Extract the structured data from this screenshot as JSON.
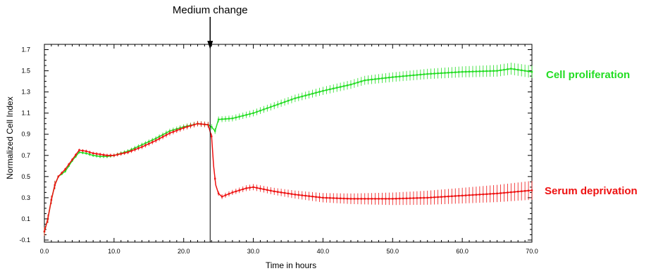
{
  "chart_data": {
    "type": "line",
    "title": "",
    "xlabel": "Time in hours",
    "ylabel": "Normalized Cell Index",
    "xlim": [
      0,
      70
    ],
    "ylim": [
      -0.12,
      1.75
    ],
    "x_ticks": [
      0,
      10,
      20,
      30,
      40,
      50,
      60,
      70
    ],
    "x_tick_labels": [
      "0.0",
      "10.0",
      "20.0",
      "30.0",
      "40.0",
      "50.0",
      "60.0",
      "70.0"
    ],
    "y_ticks": [
      -0.1,
      0.1,
      0.3,
      0.5,
      0.7,
      0.9,
      1.1,
      1.3,
      1.5,
      1.7
    ],
    "y_tick_labels": [
      "-0.1",
      "0.1",
      "0.3",
      "0.5",
      "0.7",
      "0.9",
      "1.1",
      "1.3",
      "1.5",
      "1.7"
    ],
    "grid": false,
    "annotations": [
      {
        "text": "Medium change",
        "x": 23.8,
        "type": "vertical-line-with-arrow"
      }
    ],
    "series": [
      {
        "name": "Cell proliferation",
        "color": "#22dd22",
        "points": [
          [
            0,
            -0.02
          ],
          [
            0.5,
            0.1
          ],
          [
            1,
            0.28
          ],
          [
            1.5,
            0.42
          ],
          [
            2,
            0.5
          ],
          [
            3,
            0.55
          ],
          [
            4,
            0.65
          ],
          [
            5,
            0.73
          ],
          [
            6,
            0.72
          ],
          [
            7,
            0.7
          ],
          [
            8,
            0.69
          ],
          [
            9,
            0.69
          ],
          [
            10,
            0.7
          ],
          [
            12,
            0.74
          ],
          [
            14,
            0.8
          ],
          [
            16,
            0.86
          ],
          [
            18,
            0.93
          ],
          [
            20,
            0.97
          ],
          [
            22,
            1.0
          ],
          [
            23.5,
            0.99
          ],
          [
            24,
            0.97
          ],
          [
            24.5,
            0.93
          ],
          [
            25,
            1.04
          ],
          [
            27,
            1.05
          ],
          [
            30,
            1.1
          ],
          [
            33,
            1.17
          ],
          [
            36,
            1.24
          ],
          [
            40,
            1.31
          ],
          [
            42,
            1.34
          ],
          [
            44,
            1.37
          ],
          [
            46,
            1.41
          ],
          [
            50,
            1.44
          ],
          [
            55,
            1.47
          ],
          [
            60,
            1.49
          ],
          [
            65,
            1.5
          ],
          [
            67,
            1.52
          ],
          [
            70,
            1.49
          ]
        ]
      },
      {
        "name": "Serum deprivation",
        "color": "#ee1111",
        "points": [
          [
            0,
            -0.02
          ],
          [
            0.5,
            0.1
          ],
          [
            1,
            0.28
          ],
          [
            1.5,
            0.42
          ],
          [
            2,
            0.5
          ],
          [
            3,
            0.57
          ],
          [
            4,
            0.66
          ],
          [
            5,
            0.75
          ],
          [
            6,
            0.74
          ],
          [
            7,
            0.72
          ],
          [
            8,
            0.71
          ],
          [
            9,
            0.7
          ],
          [
            10,
            0.7
          ],
          [
            12,
            0.73
          ],
          [
            14,
            0.78
          ],
          [
            16,
            0.84
          ],
          [
            18,
            0.91
          ],
          [
            20,
            0.96
          ],
          [
            22,
            1.0
          ],
          [
            23.5,
            0.99
          ],
          [
            24,
            0.88
          ],
          [
            24.3,
            0.6
          ],
          [
            24.6,
            0.42
          ],
          [
            25,
            0.34
          ],
          [
            25.5,
            0.31
          ],
          [
            27,
            0.35
          ],
          [
            29,
            0.39
          ],
          [
            30,
            0.4
          ],
          [
            33,
            0.36
          ],
          [
            36,
            0.33
          ],
          [
            40,
            0.3
          ],
          [
            44,
            0.29
          ],
          [
            50,
            0.29
          ],
          [
            55,
            0.3
          ],
          [
            60,
            0.32
          ],
          [
            65,
            0.34
          ],
          [
            70,
            0.37
          ]
        ]
      }
    ]
  }
}
